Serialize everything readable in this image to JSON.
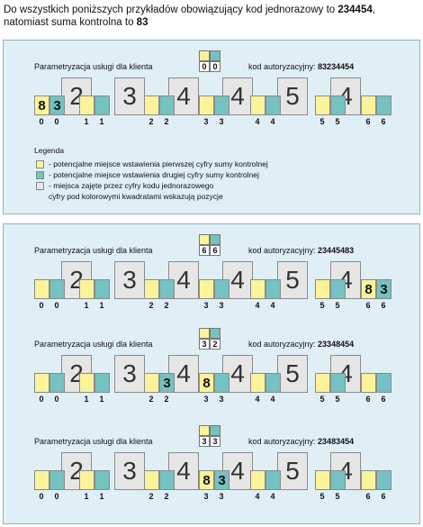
{
  "intro": {
    "line1_prefix": "Do wszystkich poniższych przykładów obowiązujący kod jednorazowy to ",
    "code": "234454",
    "line1_suffix": ",",
    "line2_prefix": "natomiast suma kontrolna to ",
    "checksum": "83"
  },
  "param_label": "Parametryzacja usługi dla klienta",
  "auth_prefix": "kod autoryzacyjny: ",
  "big_digits": [
    "2",
    "3",
    "4",
    "4",
    "5",
    "4"
  ],
  "positions": [
    "0",
    "0",
    "1",
    "1",
    "2",
    "2",
    "3",
    "3",
    "4",
    "4",
    "5",
    "5",
    "6",
    "6"
  ],
  "examples": [
    {
      "indicator": [
        "0",
        "0"
      ],
      "auth_code": "83234454",
      "inserted": [
        "8",
        "3"
      ],
      "slot": 0
    },
    {
      "indicator": [
        "6",
        "6"
      ],
      "auth_code": "23445483",
      "inserted": [
        "8",
        "3"
      ],
      "slot": 6
    },
    {
      "indicator": [
        "3",
        "2"
      ],
      "auth_code": "23348454",
      "inserted": [
        "3",
        "8"
      ],
      "slot_split": [
        2,
        3
      ]
    },
    {
      "indicator": [
        "3",
        "3"
      ],
      "auth_code": "23483454",
      "inserted": [
        "8",
        "3"
      ],
      "slot": 3
    }
  ],
  "legend": {
    "title": "Legenda",
    "yellow": "- potencjalne miejsce wstawienia pierwszej cyfry sumy kontrolnej",
    "teal": "- potencjalne miejsce wstawienia drugiej cyfry sumy kontrolnej",
    "gray_line1": "- miejsca zajęte przez cyfry kodu jednorazowego",
    "gray_line2": "cyfry pod kolorowymi kwadratami wskazują pozycje"
  },
  "colors": {
    "yellow": "#fbf39a",
    "teal": "#74c2c2",
    "gray": "#e6e6e6",
    "panel": "#e0eef6"
  }
}
